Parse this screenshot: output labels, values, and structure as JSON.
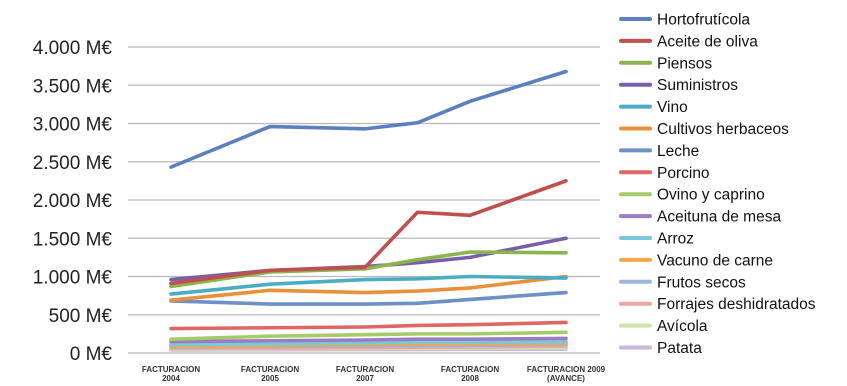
{
  "chart_data": {
    "type": "line",
    "title": "",
    "xlabel": "",
    "ylabel": "",
    "categories": [
      [
        "FACTURACION",
        "2004"
      ],
      [
        "FACTURACION",
        "2005"
      ],
      [
        "FACTURACION",
        "2007"
      ],
      [
        "FACTURACION",
        "2008"
      ],
      [
        "FACTURACION 2009",
        "(AVANCE)"
      ]
    ],
    "x_mid": [
      2.5
    ],
    "ylim": [
      0,
      4000
    ],
    "y_ticks": [
      0,
      500,
      1000,
      1500,
      2000,
      2500,
      3000,
      3500,
      4000
    ],
    "y_tick_labels": [
      "0 M€",
      "500 M€",
      "1.000 M€",
      "1.500 M€",
      "2.000 M€",
      "2.500 M€",
      "3.000 M€",
      "3.500 M€",
      "4.000 M€"
    ],
    "grid": true,
    "legend_position": "right",
    "series": [
      {
        "name": "Hortofrutícola",
        "color": "#5b7fc0",
        "x": [
          0,
          1,
          2,
          2.5,
          3,
          4
        ],
        "values": [
          2430,
          2960,
          2930,
          3010,
          3290,
          3680
        ]
      },
      {
        "name": "Aceite de oliva",
        "color": "#c0504d",
        "x": [
          0,
          1,
          2,
          2.5,
          3,
          4
        ],
        "values": [
          910,
          1080,
          1120,
          1840,
          1800,
          2250
        ]
      },
      {
        "name": "Piensos",
        "color": "#8ab44e",
        "x": [
          0,
          1,
          2,
          2.5,
          3,
          4
        ],
        "values": [
          870,
          1060,
          1100,
          1220,
          1320,
          1310
        ]
      },
      {
        "name": "Suministros",
        "color": "#7b5ea7",
        "x": [
          0,
          1,
          2,
          2.5,
          3,
          4
        ],
        "values": [
          960,
          1080,
          1130,
          1180,
          1250,
          1500
        ]
      },
      {
        "name": "Vino",
        "color": "#4bacc6",
        "x": [
          0,
          1,
          2,
          2.5,
          3,
          4
        ],
        "values": [
          770,
          900,
          960,
          970,
          1000,
          980
        ]
      },
      {
        "name": "Cultivos herbaceos",
        "color": "#e8913a",
        "x": [
          0,
          1,
          2,
          2.5,
          3,
          4
        ],
        "values": [
          690,
          820,
          790,
          810,
          850,
          1000
        ]
      },
      {
        "name": "Leche",
        "color": "#6f8fc8",
        "x": [
          0,
          1,
          2,
          2.5,
          3,
          4
        ],
        "values": [
          680,
          640,
          640,
          650,
          700,
          790
        ]
      },
      {
        "name": "Porcino",
        "color": "#e06666",
        "x": [
          0,
          1,
          2,
          2.5,
          3,
          4
        ],
        "values": [
          320,
          330,
          340,
          360,
          370,
          400
        ]
      },
      {
        "name": "Ovino y caprino",
        "color": "#a6cc6a",
        "x": [
          0,
          1,
          2,
          2.5,
          3,
          4
        ],
        "values": [
          180,
          220,
          240,
          250,
          250,
          270
        ]
      },
      {
        "name": "Aceituna de mesa",
        "color": "#9a7cc2",
        "x": [
          0,
          1,
          2,
          2.5,
          3,
          4
        ],
        "values": [
          150,
          160,
          170,
          180,
          180,
          190
        ]
      },
      {
        "name": "Arroz",
        "color": "#7cc8d8",
        "x": [
          0,
          1,
          2,
          2.5,
          3,
          4
        ],
        "values": [
          110,
          120,
          130,
          140,
          140,
          150
        ]
      },
      {
        "name": "Vacuno de carne",
        "color": "#f4a742",
        "x": [
          0,
          1,
          2,
          2.5,
          3,
          4
        ],
        "values": [
          90,
          100,
          110,
          115,
          120,
          130
        ]
      },
      {
        "name": "Frutos secos",
        "color": "#9fb4dc",
        "x": [
          0,
          1,
          2,
          2.5,
          3,
          4
        ],
        "values": [
          80,
          85,
          90,
          95,
          100,
          110
        ]
      },
      {
        "name": "Forrajes deshidratados",
        "color": "#efa5a0",
        "x": [
          0,
          1,
          2,
          2.5,
          3,
          4
        ],
        "values": [
          60,
          65,
          70,
          75,
          80,
          90
        ]
      },
      {
        "name": "Avícola",
        "color": "#cfe3a6",
        "x": [
          0,
          1,
          2,
          2.5,
          3,
          4
        ],
        "values": [
          50,
          55,
          60,
          60,
          65,
          70
        ]
      },
      {
        "name": "Patata",
        "color": "#c9b8dd",
        "x": [
          0,
          1,
          2,
          2.5,
          3,
          4
        ],
        "values": [
          40,
          42,
          45,
          45,
          48,
          50
        ]
      }
    ]
  }
}
